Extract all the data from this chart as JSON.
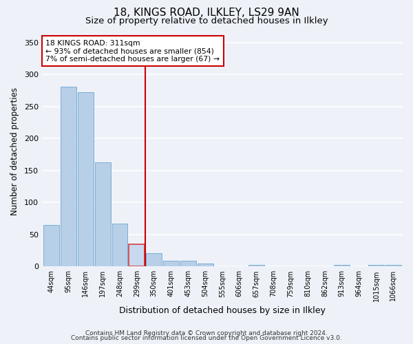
{
  "title": "18, KINGS ROAD, ILKLEY, LS29 9AN",
  "subtitle": "Size of property relative to detached houses in Ilkley",
  "xlabel": "Distribution of detached houses by size in Ilkley",
  "ylabel": "Number of detached properties",
  "categories": [
    "44sqm",
    "95sqm",
    "146sqm",
    "197sqm",
    "248sqm",
    "299sqm",
    "350sqm",
    "401sqm",
    "453sqm",
    "504sqm",
    "555sqm",
    "606sqm",
    "657sqm",
    "708sqm",
    "759sqm",
    "810sqm",
    "862sqm",
    "913sqm",
    "964sqm",
    "1015sqm",
    "1066sqm"
  ],
  "bar_heights": [
    65,
    281,
    272,
    163,
    67,
    35,
    21,
    9,
    9,
    5,
    0,
    0,
    2,
    0,
    0,
    0,
    0,
    2,
    0,
    2,
    2
  ],
  "bar_color": "#b8cfe8",
  "bar_edge_color": "#7aadd4",
  "highlight_bar_index": 5,
  "highlight_bar_color": "#c8d8ee",
  "highlight_bar_edge_color": "#d04040",
  "vline_x": 5.5,
  "vline_color": "#cc0000",
  "annotation_title": "18 KINGS ROAD: 311sqm",
  "annotation_line1": "← 93% of detached houses are smaller (854)",
  "annotation_line2": "7% of semi-detached houses are larger (67) →",
  "annotation_box_color": "#ffffff",
  "annotation_box_edge": "#cc0000",
  "ylim": [
    0,
    360
  ],
  "yticks": [
    0,
    50,
    100,
    150,
    200,
    250,
    300,
    350
  ],
  "footer1": "Contains HM Land Registry data © Crown copyright and database right 2024.",
  "footer2": "Contains public sector information licensed under the Open Government Licence v3.0.",
  "bg_color": "#eef2f8",
  "plot_bg_color": "#eef2f8",
  "grid_color": "#ffffff",
  "title_fontsize": 11,
  "subtitle_fontsize": 9.5,
  "footer_fontsize": 6.5
}
